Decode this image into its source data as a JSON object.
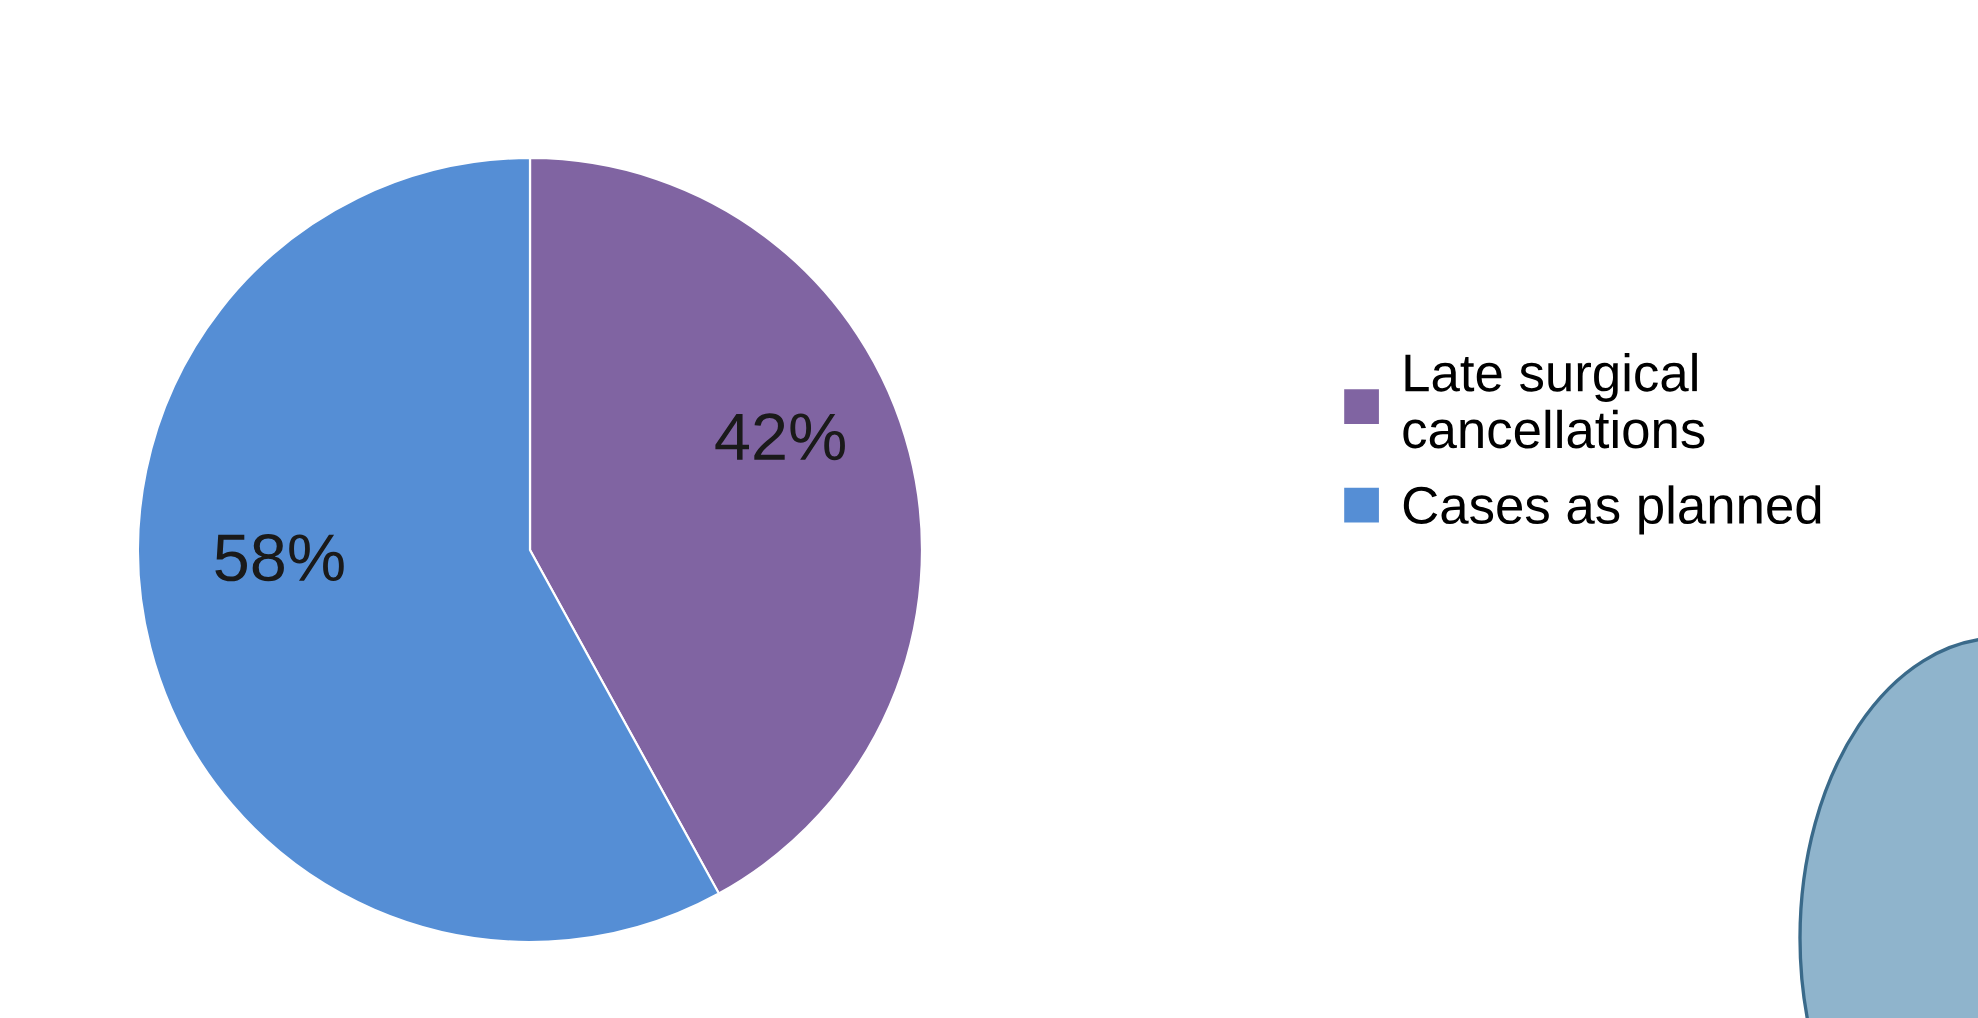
{
  "chart_data": {
    "type": "pie",
    "categories": [
      "Late surgical\ncancellations",
      "Cases as planned"
    ],
    "values": [
      42,
      58
    ],
    "colors": [
      "#8064a2",
      "#558ed5"
    ],
    "value_labels": [
      "42%",
      "58%"
    ],
    "legend": "right"
  }
}
